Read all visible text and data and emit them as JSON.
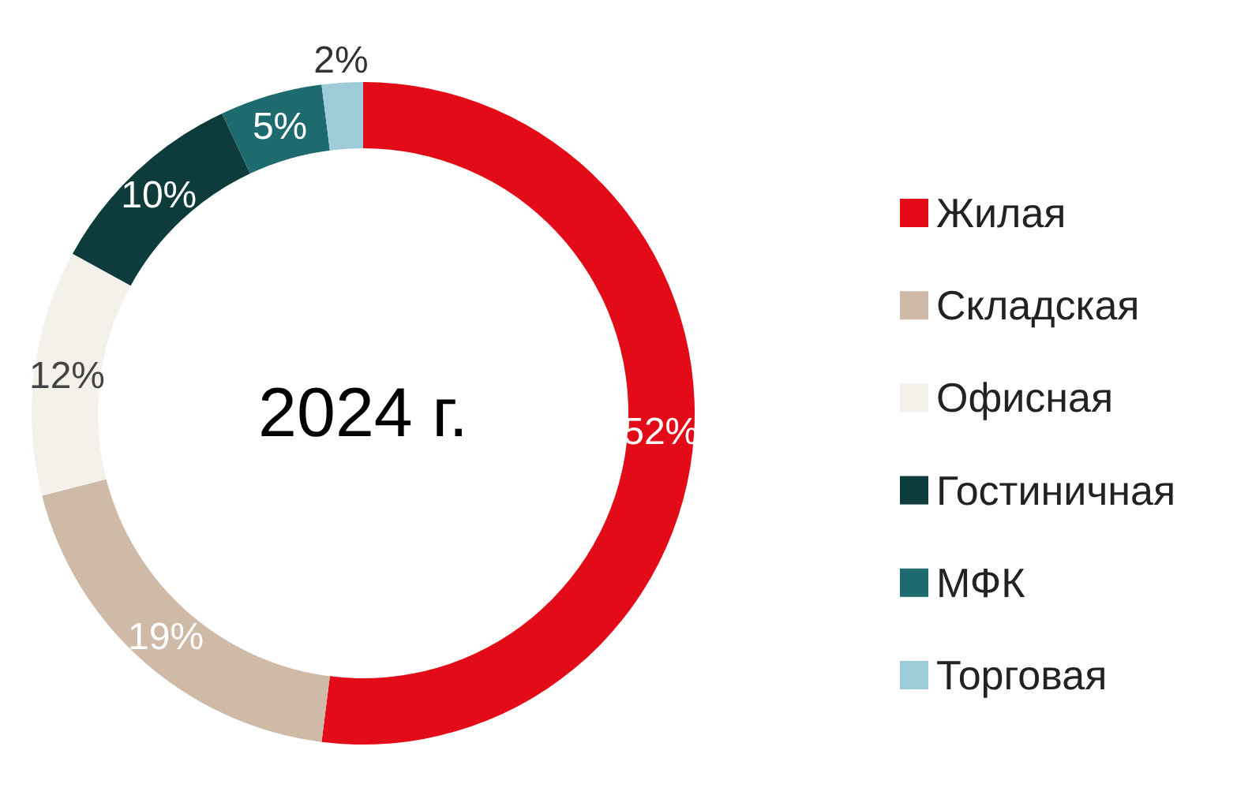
{
  "chart_data": {
    "type": "donut",
    "title": "2024 г.",
    "categories": [
      "Жилая",
      "Складская",
      "Офисная",
      "Гостиничная",
      "МФК",
      "Торговая"
    ],
    "values": [
      52,
      19,
      12,
      10,
      5,
      2
    ],
    "colors": [
      "#e30b17",
      "#cfb9a7",
      "#f4f0ea",
      "#0e3c3d",
      "#1d6b6e",
      "#9dcbd8"
    ],
    "value_labels": [
      "52%",
      "19%",
      "12%",
      "10%",
      "5%",
      "2%"
    ],
    "legend": "right"
  }
}
